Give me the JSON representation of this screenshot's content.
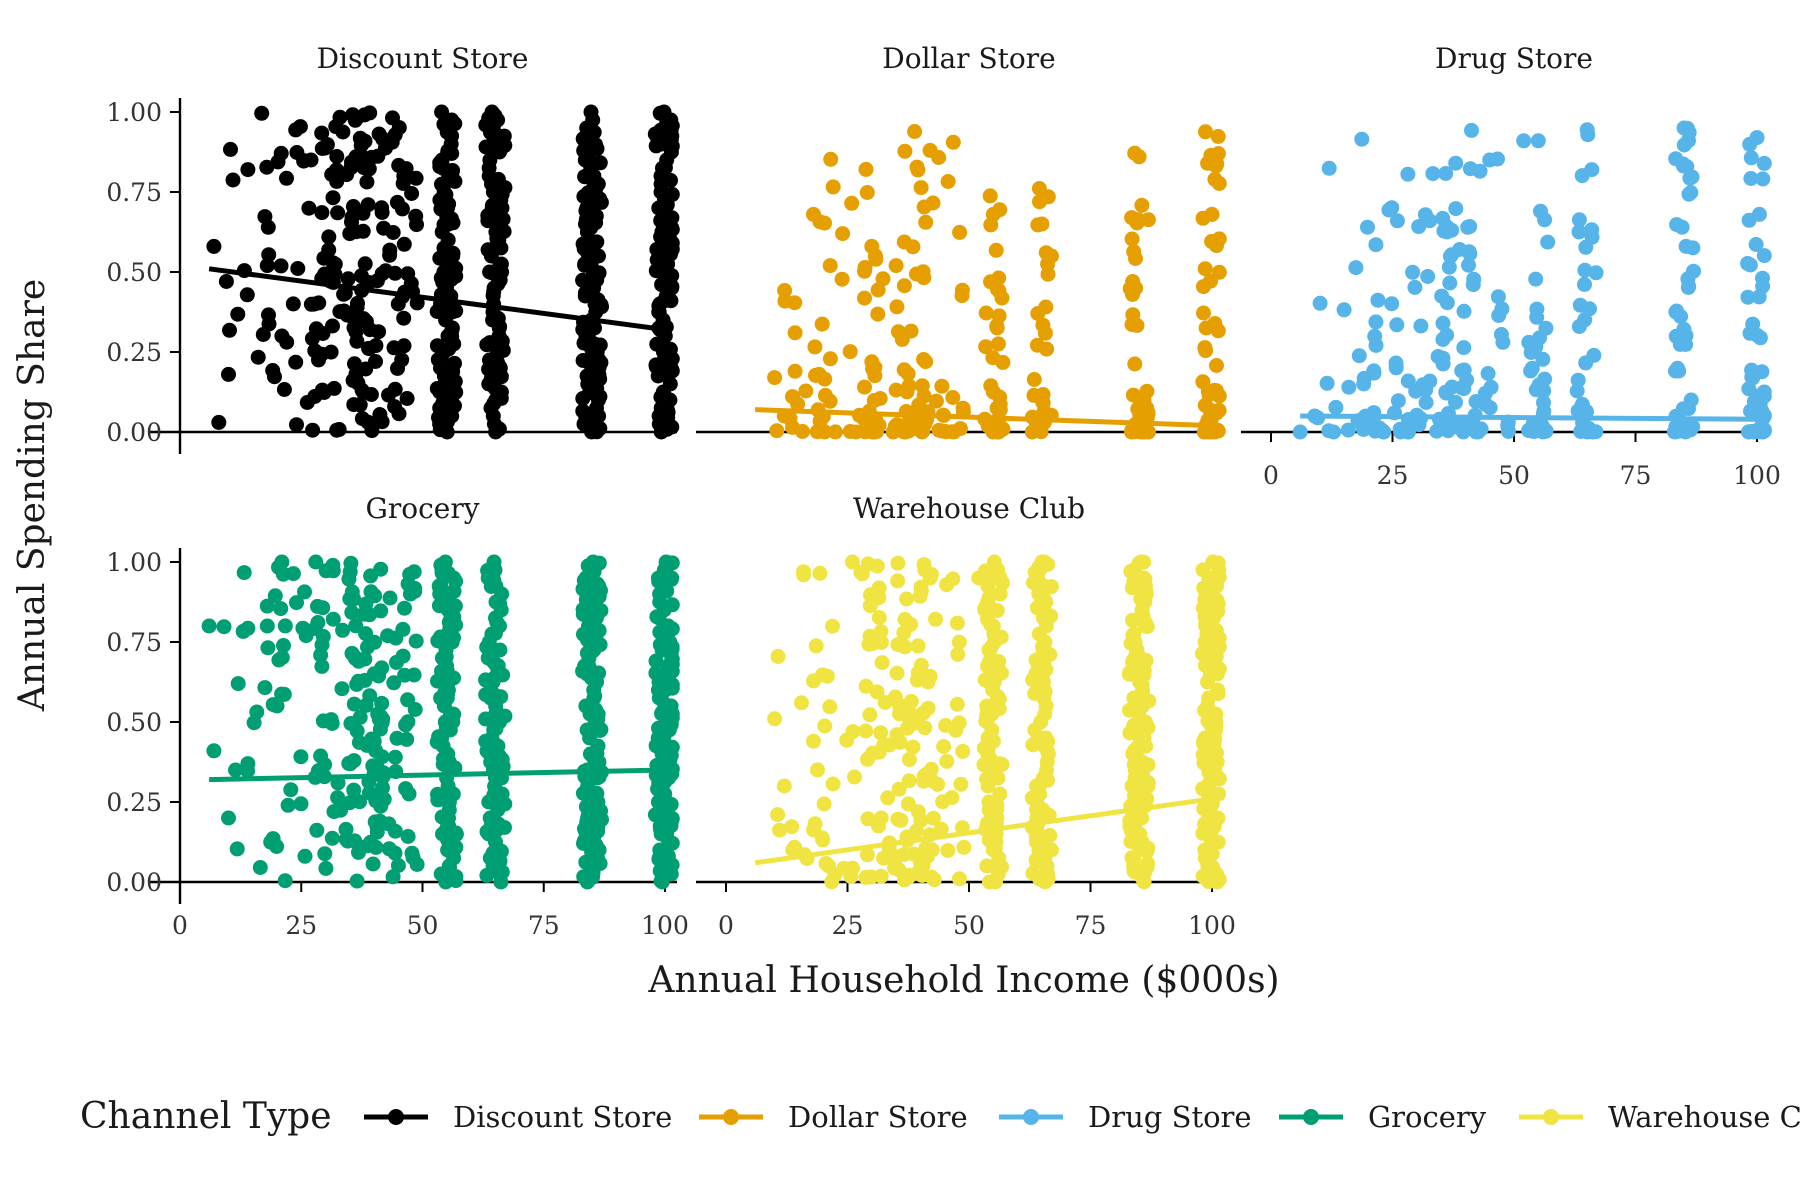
{
  "chart_data": {
    "type": "scatter",
    "xlabel": "Annual Household Income ($000s)",
    "ylabel": "Annual Spending Share",
    "xlim": [
      0,
      100
    ],
    "ylim": [
      0,
      1
    ],
    "x_ticks": [
      "0",
      "25",
      "50",
      "75",
      "100"
    ],
    "y_ticks": [
      "0.00",
      "0.25",
      "0.50",
      "0.75",
      "1.00"
    ],
    "x_tick_values": [
      0,
      25,
      50,
      75,
      100
    ],
    "y_tick_values": [
      0,
      0.25,
      0.5,
      0.75,
      1
    ],
    "grid": false,
    "legend": {
      "title": "Channel Type",
      "placement": "bottom"
    },
    "income_levels": [
      15,
      25,
      35,
      42,
      55,
      65,
      85,
      100
    ],
    "panels": [
      {
        "name": "Discount Store",
        "color": "#000000",
        "points_per_level": [
          18,
          30,
          70,
          70,
          60,
          50,
          80,
          80
        ],
        "trend": [
          [
            6,
            0.51
          ],
          [
            100,
            0.32
          ]
        ],
        "examples": [
          [
            7,
            0.58
          ],
          [
            8,
            0.03
          ],
          [
            10,
            0.18
          ],
          [
            14,
            0.82
          ],
          [
            18,
            0.52
          ],
          [
            21,
            0.3
          ],
          [
            27,
            0.85
          ],
          [
            35,
            0.62
          ],
          [
            45,
            0.4
          ]
        ]
      },
      {
        "name": "Dollar Store",
        "color": "#E69F00",
        "points_per_level": [
          18,
          30,
          45,
          45,
          35,
          30,
          50,
          50
        ],
        "trend": [
          [
            6,
            0.07
          ],
          [
            100,
            0.02
          ]
        ],
        "examples": [
          [
            10,
            0.17
          ],
          [
            12,
            0.05
          ],
          [
            18,
            0.68
          ],
          [
            24,
            0.62
          ],
          [
            30,
            0.58
          ],
          [
            35,
            0.52
          ],
          [
            42,
            0.88
          ],
          [
            55,
            0.68
          ],
          [
            65,
            0.65
          ],
          [
            85,
            0.86
          ],
          [
            100,
            0.68
          ]
        ]
      },
      {
        "name": "Drug Store",
        "color": "#56B4E9",
        "points_per_level": [
          18,
          30,
          45,
          45,
          35,
          30,
          50,
          50
        ],
        "trend": [
          [
            6,
            0.05
          ],
          [
            100,
            0.04
          ]
        ],
        "examples": [
          [
            6,
            0.0
          ],
          [
            9,
            0.05
          ],
          [
            16,
            0.14
          ],
          [
            26,
            0.66
          ],
          [
            38,
            0.84
          ],
          [
            45,
            0.85
          ],
          [
            52,
            0.91
          ],
          [
            55,
            0.91
          ],
          [
            66,
            0.82
          ],
          [
            85,
            0.95
          ],
          [
            100,
            0.92
          ]
        ]
      },
      {
        "name": "Grocery",
        "color": "#009E73",
        "points_per_level": [
          18,
          30,
          70,
          70,
          60,
          50,
          80,
          80
        ],
        "trend": [
          [
            6,
            0.32
          ],
          [
            100,
            0.35
          ]
        ],
        "examples": [
          [
            6,
            0.8
          ],
          [
            7,
            0.41
          ],
          [
            10,
            0.2
          ],
          [
            12,
            0.62
          ],
          [
            14,
            0.37
          ],
          [
            18,
            0.8
          ],
          [
            20,
            0.55
          ],
          [
            26,
            0.77
          ],
          [
            21,
            1.0
          ],
          [
            28,
            1.0
          ]
        ]
      },
      {
        "name": "Warehouse Club",
        "color": "#F0E442",
        "points_per_level": [
          18,
          30,
          60,
          60,
          50,
          45,
          80,
          80
        ],
        "trend": [
          [
            6,
            0.06
          ],
          [
            100,
            0.26
          ]
        ],
        "examples": [
          [
            10,
            0.51
          ],
          [
            12,
            0.3
          ],
          [
            18,
            0.44
          ],
          [
            26,
            1.0
          ],
          [
            30,
            0.75
          ],
          [
            42,
            0.95
          ],
          [
            52,
            0.95
          ],
          [
            65,
            1.0
          ]
        ]
      }
    ]
  }
}
